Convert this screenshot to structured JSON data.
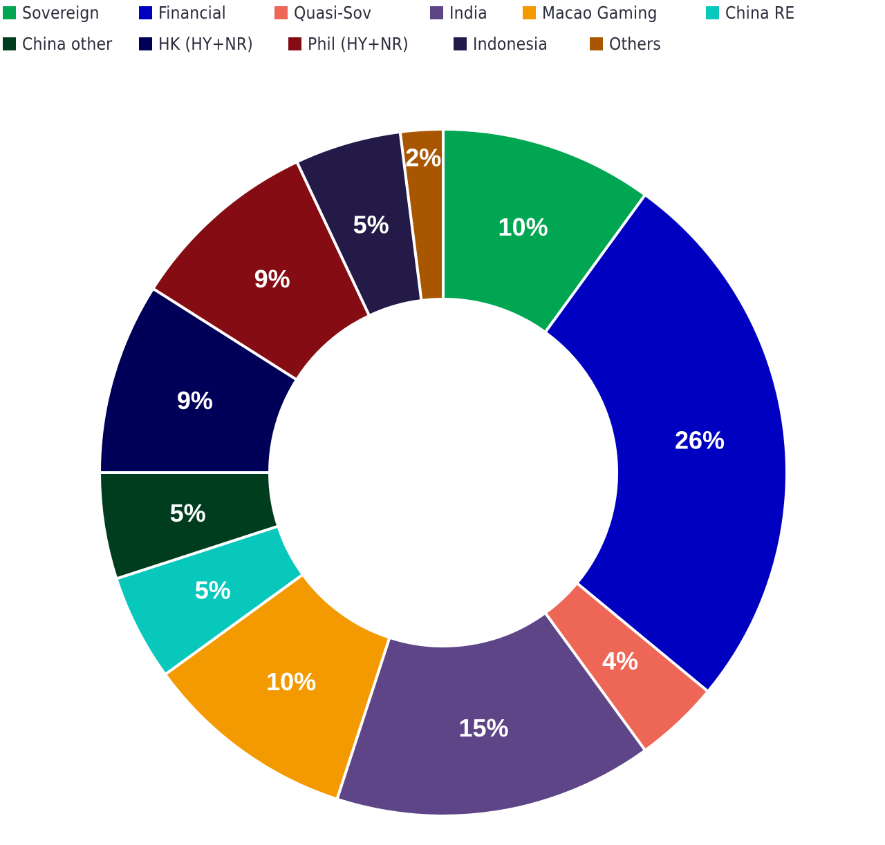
{
  "chart_data": {
    "type": "pie",
    "variant": "donut",
    "title": "",
    "legend_position": "top",
    "categories": [
      "Sovereign",
      "Financial",
      "Quasi-Sov",
      "India",
      "Macao Gaming",
      "China RE",
      "China other",
      "HK (HY+NR)",
      "Phil (HY+NR)",
      "Indonesia",
      "Others"
    ],
    "values": [
      10,
      26,
      4,
      15,
      10,
      5,
      5,
      9,
      9,
      5,
      2
    ],
    "labels": [
      "10%",
      "26%",
      "4%",
      "15%",
      "10%",
      "5%",
      "5%",
      "9%",
      "9%",
      "5%",
      "2%"
    ],
    "colors": [
      "#00a651",
      "#0000c0",
      "#ee6655",
      "#5e4587",
      "#f39a00",
      "#08c7bb",
      "#003d1e",
      "#000059",
      "#850c13",
      "#241a47",
      "#a85700"
    ],
    "unit": "%"
  },
  "legend": {
    "items": [
      {
        "label": "Sovereign",
        "color": "#00a651"
      },
      {
        "label": "Financial",
        "color": "#0000c0"
      },
      {
        "label": "Quasi-Sov",
        "color": "#ee6655"
      },
      {
        "label": "India",
        "color": "#5e4587"
      },
      {
        "label": "Macao Gaming",
        "color": "#f39a00"
      },
      {
        "label": "China RE",
        "color": "#08c7bb"
      },
      {
        "label": "China other",
        "color": "#003d1e"
      },
      {
        "label": "HK (HY+NR)",
        "color": "#000059"
      },
      {
        "label": "Phil (HY+NR)",
        "color": "#850c13"
      },
      {
        "label": "Indonesia",
        "color": "#241a47"
      },
      {
        "label": "Others",
        "color": "#a85700"
      }
    ]
  }
}
